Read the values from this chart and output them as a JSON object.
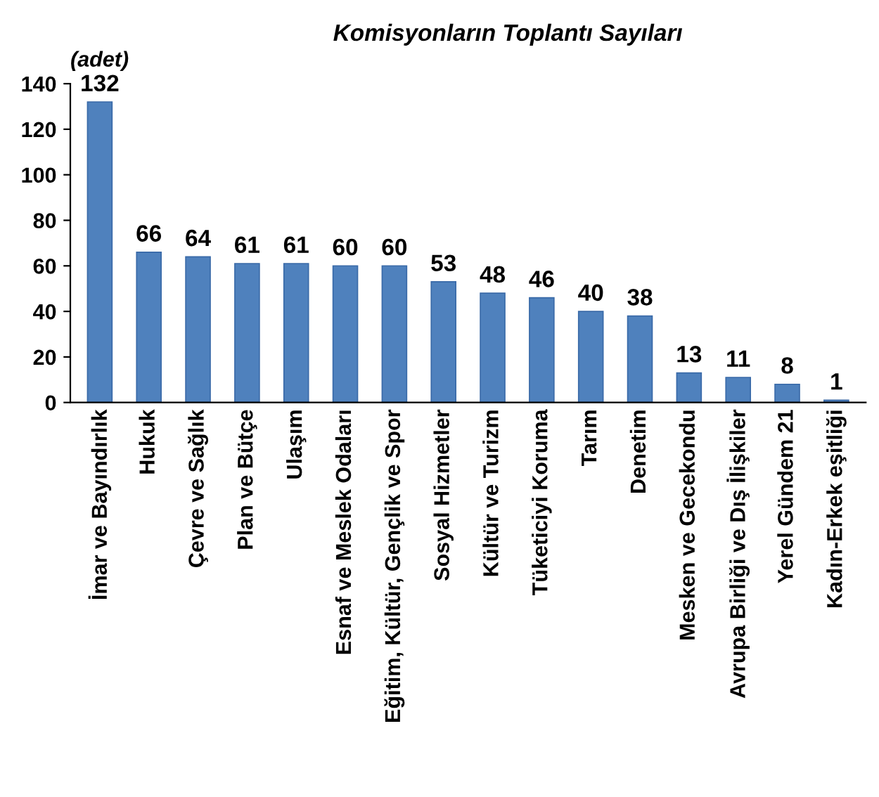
{
  "chart_data": {
    "type": "bar",
    "title": "Komisyonların Toplantı Sayıları",
    "ylabel": "(adet)",
    "categories": [
      "İmar ve Bayındırlık",
      "Hukuk",
      "Çevre ve Sağlık",
      "Plan ve Bütçe",
      "Ulaşım",
      "Esnaf ve Meslek Odaları",
      "Eğitim, Kültür, Gençlik ve Spor",
      "Sosyal Hizmetler",
      "Kültür ve Turizm",
      "Tüketiciyi Koruma",
      "Tarım",
      "Denetim",
      "Mesken ve Gecekondu",
      "Avrupa Birliği ve Dış İlişkiler",
      "Yerel Gündem 21",
      "Kadın-Erkek eşitliği"
    ],
    "values": [
      132,
      66,
      64,
      61,
      61,
      60,
      60,
      53,
      48,
      46,
      40,
      38,
      13,
      11,
      8,
      1
    ],
    "color": "#4f81bd",
    "ylim": [
      0,
      140
    ],
    "yticks": [
      0,
      20,
      40,
      60,
      80,
      100,
      120,
      140
    ],
    "grid": false,
    "data_labels": true
  }
}
